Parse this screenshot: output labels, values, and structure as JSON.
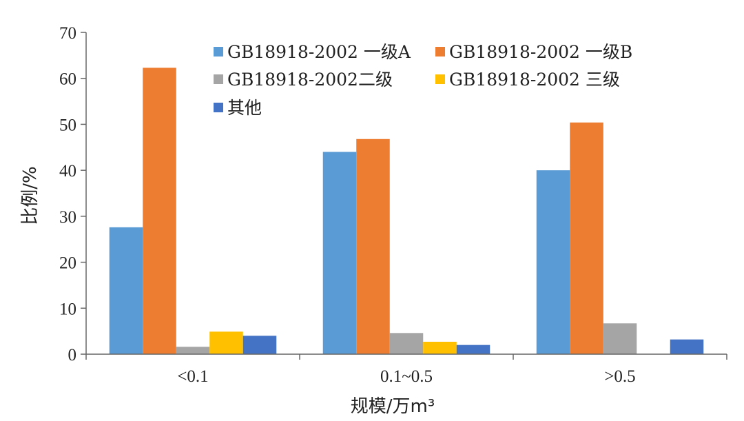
{
  "chart_data": {
    "type": "bar",
    "title": "",
    "xlabel": "规模/万m³",
    "ylabel": "比例/%",
    "ylim": [
      0,
      70
    ],
    "yticks": [
      0,
      10,
      20,
      30,
      40,
      50,
      60,
      70
    ],
    "grid": false,
    "legend_position": "top-right",
    "categories": [
      "<0.1",
      "0.1~0.5",
      ">0.5"
    ],
    "series": [
      {
        "name": "GB18918-2002 一级A",
        "color": "#5B9BD5",
        "values": [
          27.6,
          44.0,
          40.0
        ]
      },
      {
        "name": "GB18918-2002 一级B",
        "color": "#ED7D31",
        "values": [
          62.3,
          46.8,
          50.4
        ]
      },
      {
        "name": "GB18918-2002二级",
        "color": "#A5A5A5",
        "values": [
          1.6,
          4.6,
          6.7
        ]
      },
      {
        "name": "GB18918-2002 三级",
        "color": "#FFC000",
        "values": [
          4.9,
          2.7,
          0
        ]
      },
      {
        "name": "其他",
        "color": "#4472C4",
        "values": [
          4.0,
          2.0,
          3.2
        ]
      }
    ]
  }
}
